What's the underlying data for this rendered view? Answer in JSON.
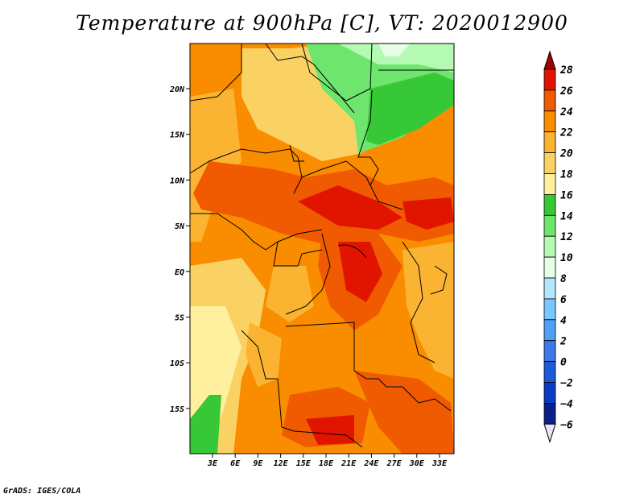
{
  "title": "Temperature at 900hPa [C], VT: 2020012900",
  "credit": "GrADS: IGES/COLA",
  "map": {
    "lat_labels": [
      {
        "label": "20N",
        "lat": 20
      },
      {
        "label": "15N",
        "lat": 15
      },
      {
        "label": "10N",
        "lat": 10
      },
      {
        "label": "5N",
        "lat": 5
      },
      {
        "label": "EQ",
        "lat": 0
      },
      {
        "label": "5S",
        "lat": -5
      },
      {
        "label": "10S",
        "lat": -10
      },
      {
        "label": "15S",
        "lat": -15
      }
    ],
    "lon_labels": [
      {
        "label": "3E",
        "lon": 3
      },
      {
        "label": "6E",
        "lon": 6
      },
      {
        "label": "9E",
        "lon": 9
      },
      {
        "label": "12E",
        "lon": 12
      },
      {
        "label": "15E",
        "lon": 15
      },
      {
        "label": "18E",
        "lon": 18
      },
      {
        "label": "21E",
        "lon": 21
      },
      {
        "label": "24E",
        "lon": 24
      },
      {
        "label": "27E",
        "lon": 27
      },
      {
        "label": "30E",
        "lon": 30
      },
      {
        "label": "33E",
        "lon": 33
      }
    ],
    "extent": {
      "lon_min": 0,
      "lon_max": 35,
      "lat_min": -20,
      "lat_max": 25
    }
  },
  "colorbar": {
    "levels": [
      {
        "label": "28",
        "color": "#a50000"
      },
      {
        "label": "26",
        "color": "#e11400"
      },
      {
        "label": "24",
        "color": "#f05a00"
      },
      {
        "label": "22",
        "color": "#fa8c00"
      },
      {
        "label": "20",
        "color": "#fab432"
      },
      {
        "label": "18",
        "color": "#fad264"
      },
      {
        "label": "16",
        "color": "#fff0a0"
      },
      {
        "label": "14",
        "color": "#36c836"
      },
      {
        "label": "12",
        "color": "#6ee66e"
      },
      {
        "label": "10",
        "color": "#b4fab4"
      },
      {
        "label": "8",
        "color": "#e6ffe6"
      },
      {
        "label": "6",
        "color": "#b4e6ff"
      },
      {
        "label": "4",
        "color": "#78c8ff"
      },
      {
        "label": "2",
        "color": "#50a0f5"
      },
      {
        "label": "0",
        "color": "#3c78e6"
      },
      {
        "label": "−2",
        "color": "#1e5adc"
      },
      {
        "label": "−4",
        "color": "#0a3cc8"
      },
      {
        "label": "−6",
        "color": "#0a1e8c"
      }
    ],
    "bottom_color": "#000064",
    "under_color": "#e6e6fa"
  }
}
